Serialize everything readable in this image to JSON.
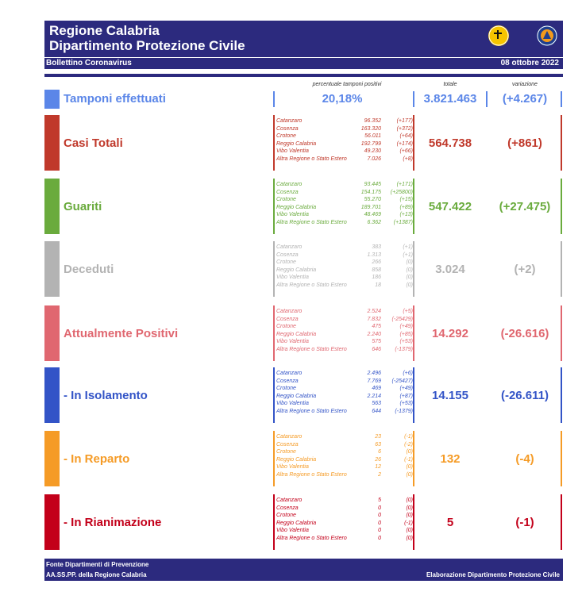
{
  "header": {
    "title_line1": "Regione Calabria",
    "title_line2": "Dipartimento Protezione Civile",
    "subtitle": "Bollettino Coronavirus",
    "date": "08 ottobre 2022"
  },
  "column_headers": {
    "percent": "percentuale tamponi positivi",
    "total": "totale",
    "variation": "variazione"
  },
  "colors": {
    "header_bg": "#2c2a7e",
    "tamponi": "#5b86e8",
    "casi": "#c0392b",
    "guariti": "#6aab3d",
    "deceduti": "#b3b3b3",
    "attualmente": "#e06770",
    "isolamento": "#3354c7",
    "reparto": "#f59b26",
    "rianimazione": "#c3001a"
  },
  "tamponi": {
    "label": "Tamponi effettuati",
    "percent": "20,18%",
    "total": "3.821.463",
    "variation": "(+4.267)"
  },
  "sections": [
    {
      "key": "casi",
      "label": "Casi Totali",
      "total": "564.738",
      "variation": "(+861)",
      "rows": [
        {
          "name": "Catanzaro",
          "value": "96.352",
          "var": "(+177)"
        },
        {
          "name": "Cosenza",
          "value": "163.320",
          "var": "(+372)"
        },
        {
          "name": "Crotone",
          "value": "56.011",
          "var": "(+64)"
        },
        {
          "name": "Reggio Calabria",
          "value": "192.799",
          "var": "(+174)"
        },
        {
          "name": "Vibo Valentia",
          "value": "49.230",
          "var": "(+66)"
        },
        {
          "name": "Altra Regione o Stato Estero",
          "value": "7.026",
          "var": "(+8)"
        }
      ]
    },
    {
      "key": "guariti",
      "label": "Guariti",
      "total": "547.422",
      "variation": "(+27.475)",
      "rows": [
        {
          "name": "Catanzaro",
          "value": "93.445",
          "var": "(+171)"
        },
        {
          "name": "Cosenza",
          "value": "154.175",
          "var": "(+25800)"
        },
        {
          "name": "Crotone",
          "value": "55.270",
          "var": "(+15)"
        },
        {
          "name": "Reggio Calabria",
          "value": "189.701",
          "var": "(+89)"
        },
        {
          "name": "Vibo Valentia",
          "value": "48.469",
          "var": "(+13)"
        },
        {
          "name": "Altra Regione o Stato Estero",
          "value": "6.362",
          "var": "(+1387)"
        }
      ]
    },
    {
      "key": "deceduti",
      "label": "Deceduti",
      "total": "3.024",
      "variation": "(+2)",
      "rows": [
        {
          "name": "Catanzaro",
          "value": "383",
          "var": "(+1)"
        },
        {
          "name": "Cosenza",
          "value": "1.313",
          "var": "(+1)"
        },
        {
          "name": "Crotone",
          "value": "266",
          "var": "(0)"
        },
        {
          "name": "Reggio Calabria",
          "value": "858",
          "var": "(0)"
        },
        {
          "name": "Vibo Valentia",
          "value": "186",
          "var": "(0)"
        },
        {
          "name": "Altra Regione o Stato Estero",
          "value": "18",
          "var": "(0)"
        }
      ]
    },
    {
      "key": "attualmente",
      "label": "Attualmente Positivi",
      "total": "14.292",
      "variation": "(-26.616)",
      "rows": [
        {
          "name": "Catanzaro",
          "value": "2.524",
          "var": "(+5)"
        },
        {
          "name": "Cosenza",
          "value": "7.832",
          "var": "(-25429)"
        },
        {
          "name": "Crotone",
          "value": "475",
          "var": "(+49)"
        },
        {
          "name": "Reggio Calabria",
          "value": "2.240",
          "var": "(+85)"
        },
        {
          "name": "Vibo Valentia",
          "value": "575",
          "var": "(+53)"
        },
        {
          "name": "Altra Regione o Stato Estero",
          "value": "646",
          "var": "(-1379)"
        }
      ]
    },
    {
      "key": "isolamento",
      "label": " - In Isolamento",
      "total": "14.155",
      "variation": "(-26.611)",
      "rows": [
        {
          "name": "Catanzaro",
          "value": "2.496",
          "var": "(+6)"
        },
        {
          "name": "Cosenza",
          "value": "7.769",
          "var": "(-25427)"
        },
        {
          "name": "Crotone",
          "value": "469",
          "var": "(+49)"
        },
        {
          "name": "Reggio Calabria",
          "value": "2.214",
          "var": "(+87)"
        },
        {
          "name": "Vibo Valentia",
          "value": "563",
          "var": "(+53)"
        },
        {
          "name": "Altra Regione o Stato Estero",
          "value": "644",
          "var": "(-1379)"
        }
      ]
    },
    {
      "key": "reparto",
      "label": " - In Reparto",
      "total": "132",
      "variation": "(-4)",
      "rows": [
        {
          "name": "Catanzaro",
          "value": "23",
          "var": "(-1)"
        },
        {
          "name": "Cosenza",
          "value": "63",
          "var": "(-2)"
        },
        {
          "name": "Crotone",
          "value": "6",
          "var": "(0)"
        },
        {
          "name": "Reggio Calabria",
          "value": "26",
          "var": "(-1)"
        },
        {
          "name": "Vibo Valentia",
          "value": "12",
          "var": "(0)"
        },
        {
          "name": "Altra Regione o Stato Estero",
          "value": "2",
          "var": "(0)"
        }
      ]
    },
    {
      "key": "rianimazione",
      "label": " - In Rianimazione",
      "total": "5",
      "variation": "(-1)",
      "rows": [
        {
          "name": "Catanzaro",
          "value": "5",
          "var": "(0)"
        },
        {
          "name": "Cosenza",
          "value": "0",
          "var": "(0)"
        },
        {
          "name": "Crotone",
          "value": "0",
          "var": "(0)"
        },
        {
          "name": "Reggio Calabria",
          "value": "0",
          "var": "(-1)"
        },
        {
          "name": "Vibo Valentia",
          "value": "0",
          "var": "(0)"
        },
        {
          "name": "Altra Regione o Stato Estero",
          "value": "0",
          "var": "(0)"
        }
      ]
    }
  ],
  "footer": {
    "source_line1": "Fonte Dipartimenti di Prevenzione",
    "source_line2": "AA.SS.PP.  della Regione Calabria",
    "elaboration": "Elaborazione Dipartimento Protezione Civile"
  }
}
